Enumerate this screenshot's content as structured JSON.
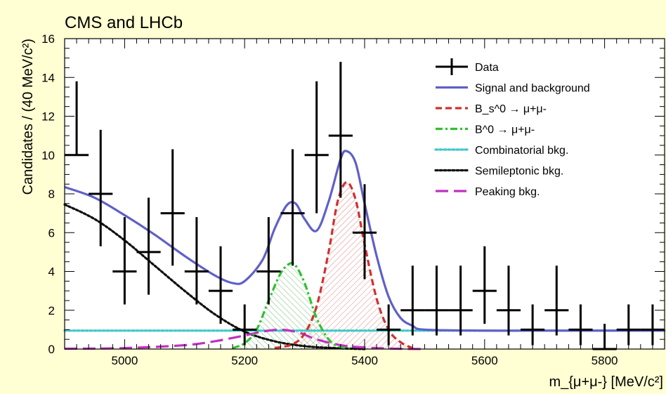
{
  "experiment_label": "CMS and LHCb",
  "chart_data": {
    "type": "scatter",
    "title": "CMS and LHCb",
    "xlabel": "m_{μ+μ-} [MeV/c²]",
    "ylabel": "Candidates / (40 MeV/c²)",
    "xlim": [
      4900,
      5900
    ],
    "ylim": [
      0,
      16
    ],
    "x_ticks": [
      5000,
      5200,
      5400,
      5600,
      5800
    ],
    "y_ticks": [
      0,
      2,
      4,
      6,
      8,
      10,
      12,
      14,
      16
    ],
    "legend_placement": "top-right",
    "data_points": [
      {
        "x": 4920,
        "y": 10,
        "err_lo": 10,
        "err_hi": 13.8
      },
      {
        "x": 4960,
        "y": 8,
        "err_lo": 5.3,
        "err_hi": 11.3
      },
      {
        "x": 5000,
        "y": 4,
        "err_lo": 2.3,
        "err_hi": 6.8
      },
      {
        "x": 5040,
        "y": 5,
        "err_lo": 2.8,
        "err_hi": 7.8
      },
      {
        "x": 5080,
        "y": 7,
        "err_lo": 4.3,
        "err_hi": 10.3
      },
      {
        "x": 5120,
        "y": 4,
        "err_lo": 2.3,
        "err_hi": 6.8
      },
      {
        "x": 5160,
        "y": 3,
        "err_lo": 1.3,
        "err_hi": 5.3
      },
      {
        "x": 5200,
        "y": 1,
        "err_lo": 0.2,
        "err_hi": 2.3
      },
      {
        "x": 5240,
        "y": 4,
        "err_lo": 2.3,
        "err_hi": 6.8
      },
      {
        "x": 5280,
        "y": 7,
        "err_lo": 4.3,
        "err_hi": 10.3
      },
      {
        "x": 5320,
        "y": 10,
        "err_lo": 7.0,
        "err_hi": 13.8
      },
      {
        "x": 5360,
        "y": 11,
        "err_lo": 7.8,
        "err_hi": 14.8
      },
      {
        "x": 5400,
        "y": 6,
        "err_lo": 3.6,
        "err_hi": 8.5
      },
      {
        "x": 5440,
        "y": 1,
        "err_lo": 0.2,
        "err_hi": 2.3
      },
      {
        "x": 5480,
        "y": 2,
        "err_lo": 0.7,
        "err_hi": 4.3
      },
      {
        "x": 5520,
        "y": 2,
        "err_lo": 0.7,
        "err_hi": 4.3
      },
      {
        "x": 5560,
        "y": 2,
        "err_lo": 0.7,
        "err_hi": 4.3
      },
      {
        "x": 5600,
        "y": 3,
        "err_lo": 1.3,
        "err_hi": 5.3
      },
      {
        "x": 5640,
        "y": 2,
        "err_lo": 0.7,
        "err_hi": 4.3
      },
      {
        "x": 5680,
        "y": 1,
        "err_lo": 0.2,
        "err_hi": 2.3
      },
      {
        "x": 5720,
        "y": 2,
        "err_lo": 0.7,
        "err_hi": 4.3
      },
      {
        "x": 5760,
        "y": 1,
        "err_lo": 0.2,
        "err_hi": 2.3
      },
      {
        "x": 5800,
        "y": 0,
        "err_lo": 0,
        "err_hi": 1.3
      },
      {
        "x": 5840,
        "y": 1,
        "err_lo": 0.2,
        "err_hi": 2.3
      },
      {
        "x": 5880,
        "y": 1,
        "err_lo": 0.2,
        "err_hi": 2.3
      }
    ],
    "curves": [
      {
        "name": "Signal and background",
        "color": "#6060c8",
        "style": "solid",
        "x": [
          4900,
          4950,
          5000,
          5050,
          5100,
          5150,
          5180,
          5200,
          5230,
          5250,
          5270,
          5285,
          5300,
          5320,
          5340,
          5360,
          5370,
          5385,
          5400,
          5420,
          5440,
          5460,
          5480,
          5500,
          5600,
          5700,
          5800,
          5900
        ],
        "y": [
          8.35,
          7.8,
          6.9,
          5.9,
          4.8,
          3.8,
          3.4,
          3.5,
          4.6,
          6.2,
          7.4,
          7.5,
          6.7,
          6.1,
          7.6,
          9.8,
          10.2,
          9.6,
          7.5,
          4.8,
          2.7,
          1.6,
          1.2,
          1.0,
          0.95,
          0.95,
          0.95,
          0.95
        ]
      },
      {
        "name": "B_s^0 → μ+μ-",
        "color": "#d03030",
        "style": "dashed",
        "x": [
          5250,
          5280,
          5300,
          5320,
          5340,
          5355,
          5370,
          5385,
          5400,
          5420,
          5440,
          5460,
          5480
        ],
        "y": [
          0.05,
          0.25,
          0.8,
          2.2,
          5.0,
          7.6,
          8.6,
          7.7,
          5.4,
          2.6,
          1.0,
          0.35,
          0.05
        ]
      },
      {
        "name": "B^0 → μ+μ-",
        "color": "#30c030",
        "style": "dashdot",
        "x": [
          5180,
          5200,
          5220,
          5240,
          5260,
          5275,
          5285,
          5300,
          5320,
          5340,
          5360,
          5380
        ],
        "y": [
          0.05,
          0.3,
          1.0,
          2.5,
          3.9,
          4.4,
          4.3,
          3.4,
          1.6,
          0.5,
          0.1,
          0.02
        ]
      },
      {
        "name": "Combinatorial bkg.",
        "color": "#40c8c8",
        "style": "dotted",
        "x": [
          4900,
          5900
        ],
        "y": [
          0.95,
          0.95
        ]
      },
      {
        "name": "Semileptonic bkg.",
        "color": "#111111",
        "style": "dotted",
        "x": [
          4900,
          4950,
          5000,
          5050,
          5100,
          5150,
          5200,
          5250,
          5300,
          5350,
          5400
        ],
        "y": [
          7.45,
          6.7,
          5.6,
          4.3,
          3.0,
          1.8,
          0.9,
          0.4,
          0.15,
          0.05,
          0.0
        ]
      },
      {
        "name": "Peaking bkg.",
        "color": "#c030c0",
        "style": "longdash",
        "x": [
          4900,
          5000,
          5100,
          5150,
          5200,
          5230,
          5260,
          5290,
          5320,
          5360,
          5400,
          5450,
          5500
        ],
        "y": [
          0.02,
          0.05,
          0.2,
          0.4,
          0.7,
          0.9,
          1.0,
          0.85,
          0.5,
          0.2,
          0.08,
          0.02,
          0.0
        ]
      }
    ],
    "legend": [
      {
        "label": "Data",
        "kind": "data",
        "color": "#000000"
      },
      {
        "label": "Signal and background",
        "kind": "solid",
        "color": "#6060c8"
      },
      {
        "label": "B_s^0 → μ+μ-",
        "kind": "dashed",
        "color": "#d03030"
      },
      {
        "label": "B^0 → μ+μ-",
        "kind": "dashdot",
        "color": "#30c030"
      },
      {
        "label": "Combinatorial bkg.",
        "kind": "dotted",
        "color": "#40c8c8"
      },
      {
        "label": "Semileptonic bkg.",
        "kind": "dotted",
        "color": "#111111"
      },
      {
        "label": "Peaking bkg.",
        "kind": "longdash",
        "color": "#c030c0"
      }
    ]
  }
}
